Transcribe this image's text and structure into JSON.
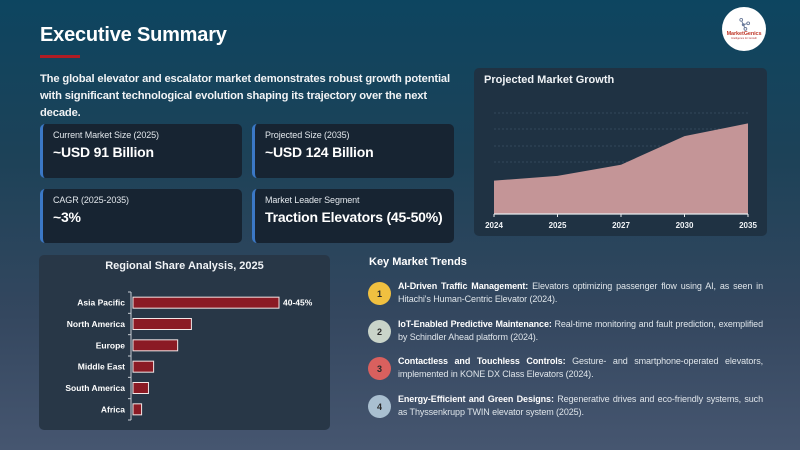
{
  "header": {
    "title": "Executive Summary",
    "intro": "The global elevator and escalator market demonstrates robust growth potential with significant technological evolution shaping its trajectory over the next decade."
  },
  "logo": {
    "name": "MarketGenics",
    "tagline": "Intelligence for Growth",
    "icon": "molecule-icon"
  },
  "colors": {
    "accent_red": "#b01c24",
    "card_border_blue": "#3b78c6",
    "area_fill": "#c49597",
    "bar_fill": "#8b1a24",
    "trend_1": "#f0c040",
    "trend_2": "#c9d4c9",
    "trend_3": "#d9605e",
    "trend_4": "#a9bfd0"
  },
  "metrics": [
    {
      "label": "Current Market Size (2025)",
      "value": "~USD 91 Billion"
    },
    {
      "label": "Projected Size (2035)",
      "value": "~USD 124 Billion"
    },
    {
      "label": "CAGR (2025-2035)",
      "value": "~3%"
    },
    {
      "label": "Market Leader Segment",
      "value": "Traction Elevators (45-50%)"
    }
  ],
  "growth": {
    "title": "Projected Market Growth"
  },
  "regional": {
    "title": "Regional Share Analysis, 2025"
  },
  "trends": {
    "title": "Key Market Trends",
    "items": [
      {
        "num": "1",
        "title": "AI-Driven Traffic Management:",
        "text": " Elevators optimizing passenger flow using AI, as seen in Hitachi's Human-Centric Elevator (2024)."
      },
      {
        "num": "2",
        "title": "IoT-Enabled Predictive Maintenance:",
        "text": " Real-time monitoring and fault prediction, exemplified by Schindler Ahead platform (2024)."
      },
      {
        "num": "3",
        "title": "Contactless and Touchless Controls:",
        "text": " Gesture- and smartphone-operated elevators, implemented in KONE DX Class Elevators (2024)."
      },
      {
        "num": "4",
        "title": "Energy-Efficient and Green Designs:",
        "text": " Regenerative drives and eco-friendly systems, such as Thyssenkrupp TWIN elevator system (2025)."
      }
    ]
  },
  "chart_data": [
    {
      "type": "area",
      "title": "Projected Market Growth",
      "x": [
        "2024",
        "2025",
        "2027",
        "2030",
        "2035"
      ],
      "values": [
        88,
        91,
        98,
        116,
        124
      ],
      "xlabel": "",
      "ylabel": "",
      "ylim": [
        67,
        140
      ],
      "grid": true,
      "legend": null,
      "note": "Values estimated from pixel heights (USD Billion); y-axis unlabeled"
    },
    {
      "type": "bar",
      "orientation": "horizontal",
      "title": "Regional Share Analysis, 2025",
      "categories": [
        "Asia Pacific",
        "North America",
        "Europe",
        "Middle East",
        "South America",
        "Africa"
      ],
      "values": [
        42.5,
        17,
        13,
        6,
        4.5,
        2.5
      ],
      "data_labels": [
        "40-45%",
        "",
        "",
        "",
        "",
        ""
      ],
      "xlabel": "",
      "ylabel": "",
      "grid": false,
      "legend": null
    }
  ]
}
